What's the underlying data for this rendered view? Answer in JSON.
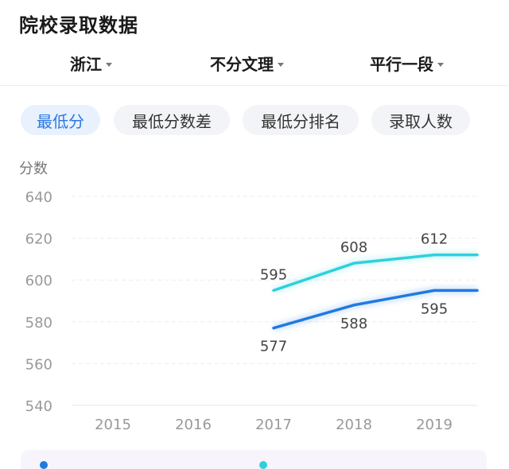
{
  "header": {
    "title": "院校录取数据"
  },
  "filters": [
    {
      "label": "浙江"
    },
    {
      "label": "不分文理"
    },
    {
      "label": "平行一段"
    }
  ],
  "tabs": [
    {
      "label": "最低分",
      "active": true
    },
    {
      "label": "最低分数差",
      "active": false
    },
    {
      "label": "最低分排名",
      "active": false
    },
    {
      "label": "录取人数",
      "active": false
    }
  ],
  "colors": {
    "accent": "#2b78e4",
    "series_1": "#1f7ae0",
    "series_2": "#2fd0dc"
  },
  "chart_data": {
    "type": "line",
    "ylabel": "分数",
    "ylim": [
      540,
      640
    ],
    "yticks": [
      540,
      560,
      580,
      600,
      620,
      640
    ],
    "categories": [
      "2015",
      "2016",
      "2017",
      "2018",
      "2019"
    ],
    "grid": true,
    "series": [
      {
        "values": [
          null,
          null,
          595,
          608,
          612
        ],
        "color": "#2fd0dc"
      },
      {
        "values": [
          null,
          null,
          577,
          588,
          595
        ],
        "color": "#1f7ae0"
      }
    ]
  }
}
